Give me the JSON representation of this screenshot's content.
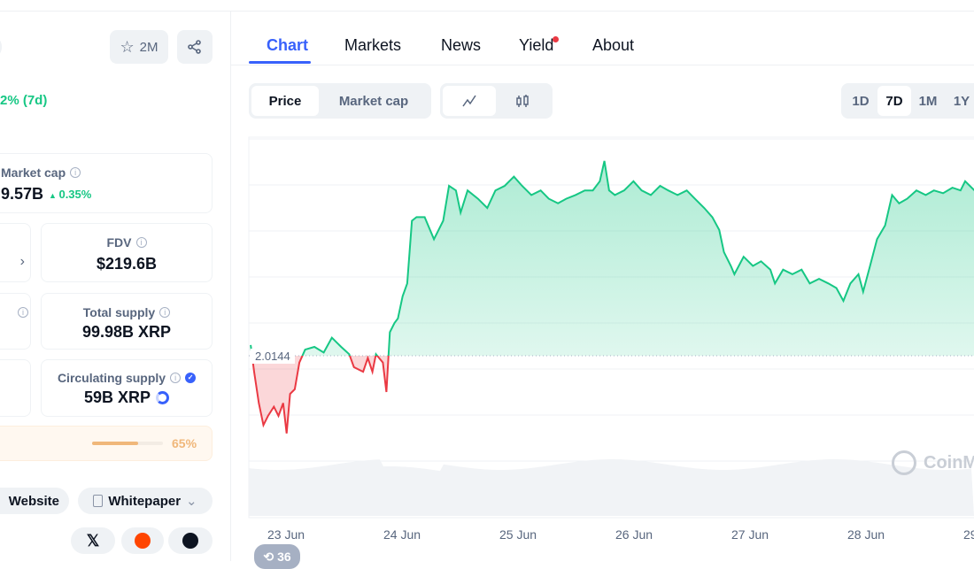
{
  "header": {
    "watchlist_count": "2M"
  },
  "summary": {
    "change_text": "2% (7d)"
  },
  "stats": {
    "market_cap": {
      "label": "Market cap",
      "value": "9.57B",
      "change": "0.35%"
    },
    "fdv": {
      "label": "FDV",
      "value": "$219.6B"
    },
    "total_supply": {
      "label": "Total supply",
      "value": "99.98B XRP"
    },
    "circulating_supply": {
      "label": "Circulating supply",
      "value": "59B XRP"
    },
    "progress": {
      "value_text": "65%",
      "percent": 65
    }
  },
  "links": {
    "website": "Website",
    "whitepaper": "Whitepaper"
  },
  "tabs": [
    {
      "label": "Chart",
      "active": true
    },
    {
      "label": "Markets"
    },
    {
      "label": "News"
    },
    {
      "label": "Yield",
      "dot": true
    },
    {
      "label": "About"
    }
  ],
  "chart_controls": {
    "price": "Price",
    "market_cap": "Market cap",
    "ranges": [
      "1D",
      "7D",
      "1M",
      "1Y"
    ],
    "active_range": "7D"
  },
  "watermark": "CoinM",
  "badge": {
    "count": "36"
  },
  "colors": {
    "accent": "#3861fb",
    "up": "#16c784",
    "down": "#ea3943",
    "progress": "#f0b77a"
  },
  "chart_data": {
    "type": "area",
    "baseline": 2.0144,
    "baseline_label": "2.0144",
    "x_ticks": [
      "23 Jun",
      "24 Jun",
      "25 Jun",
      "26 Jun",
      "27 Jun",
      "28 Jun",
      "29"
    ],
    "points": [
      [
        22.68,
        2.026
      ],
      [
        22.71,
        1.997
      ],
      [
        22.75,
        1.963
      ],
      [
        22.79,
        1.939
      ],
      [
        22.83,
        1.949
      ],
      [
        22.88,
        1.959
      ],
      [
        22.92,
        1.949
      ],
      [
        22.96,
        1.963
      ],
      [
        22.99,
        1.93
      ],
      [
        23.02,
        1.973
      ],
      [
        23.06,
        1.978
      ],
      [
        23.1,
        2.007
      ],
      [
        23.15,
        2.021
      ],
      [
        23.23,
        2.024
      ],
      [
        23.31,
        2.018
      ],
      [
        23.38,
        2.034
      ],
      [
        23.46,
        2.024
      ],
      [
        23.53,
        2.016
      ],
      [
        23.57,
        2.002
      ],
      [
        23.65,
        1.997
      ],
      [
        23.69,
        2.012
      ],
      [
        23.73,
        1.997
      ],
      [
        23.76,
        2.016
      ],
      [
        23.82,
        2.007
      ],
      [
        23.85,
        1.975
      ],
      [
        23.88,
        2.04
      ],
      [
        23.92,
        2.05
      ],
      [
        23.95,
        2.055
      ],
      [
        23.99,
        2.079
      ],
      [
        24.03,
        2.093
      ],
      [
        24.07,
        2.161
      ],
      [
        24.11,
        2.165
      ],
      [
        24.18,
        2.165
      ],
      [
        24.26,
        2.141
      ],
      [
        24.34,
        2.161
      ],
      [
        24.39,
        2.199
      ],
      [
        24.45,
        2.194
      ],
      [
        24.49,
        2.17
      ],
      [
        24.55,
        2.194
      ],
      [
        24.64,
        2.185
      ],
      [
        24.72,
        2.175
      ],
      [
        24.79,
        2.194
      ],
      [
        24.87,
        2.199
      ],
      [
        24.95,
        2.209
      ],
      [
        25.02,
        2.199
      ],
      [
        25.1,
        2.189
      ],
      [
        25.18,
        2.194
      ],
      [
        25.25,
        2.185
      ],
      [
        25.33,
        2.18
      ],
      [
        25.4,
        2.185
      ],
      [
        25.48,
        2.189
      ],
      [
        25.56,
        2.194
      ],
      [
        25.63,
        2.194
      ],
      [
        25.69,
        2.204
      ],
      [
        25.73,
        2.226
      ],
      [
        25.77,
        2.194
      ],
      [
        25.82,
        2.189
      ],
      [
        25.9,
        2.194
      ],
      [
        25.98,
        2.204
      ],
      [
        26.05,
        2.194
      ],
      [
        26.13,
        2.189
      ],
      [
        26.21,
        2.199
      ],
      [
        26.28,
        2.194
      ],
      [
        26.36,
        2.189
      ],
      [
        26.44,
        2.194
      ],
      [
        26.51,
        2.185
      ],
      [
        26.59,
        2.175
      ],
      [
        26.66,
        2.165
      ],
      [
        26.72,
        2.151
      ],
      [
        26.76,
        2.127
      ],
      [
        26.82,
        2.112
      ],
      [
        26.85,
        2.103
      ],
      [
        26.93,
        2.122
      ],
      [
        27.01,
        2.112
      ],
      [
        27.08,
        2.117
      ],
      [
        27.16,
        2.108
      ],
      [
        27.2,
        2.093
      ],
      [
        27.27,
        2.108
      ],
      [
        27.35,
        2.103
      ],
      [
        27.43,
        2.108
      ],
      [
        27.5,
        2.093
      ],
      [
        27.58,
        2.098
      ],
      [
        27.66,
        2.093
      ],
      [
        27.73,
        2.088
      ],
      [
        27.79,
        2.074
      ],
      [
        27.85,
        2.093
      ],
      [
        27.92,
        2.103
      ],
      [
        27.96,
        2.084
      ],
      [
        28.02,
        2.112
      ],
      [
        28.08,
        2.141
      ],
      [
        28.15,
        2.156
      ],
      [
        28.21,
        2.189
      ],
      [
        28.27,
        2.18
      ],
      [
        28.34,
        2.185
      ],
      [
        28.42,
        2.194
      ],
      [
        28.5,
        2.189
      ],
      [
        28.57,
        2.194
      ],
      [
        28.65,
        2.191
      ],
      [
        28.73,
        2.197
      ],
      [
        28.8,
        2.194
      ],
      [
        28.84,
        2.204
      ],
      [
        28.92,
        2.194
      ]
    ],
    "grid": true
  }
}
